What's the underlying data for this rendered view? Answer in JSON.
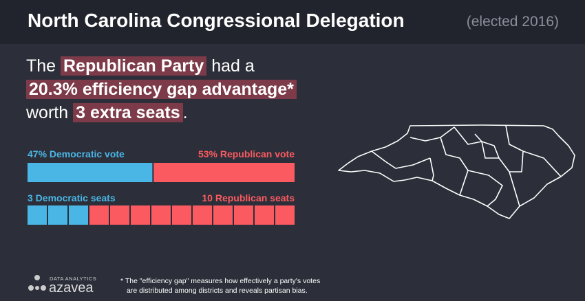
{
  "header": {
    "title": "North Carolina Congressional Delegation",
    "subtitle": "(elected 2016)"
  },
  "headline": {
    "lines": [
      [
        {
          "text": "The "
        },
        {
          "text": "Republican Party",
          "highlight": true
        },
        {
          "text": " had a"
        }
      ],
      [
        {
          "text": "20.3% efficiency gap advantage*",
          "highlight": true
        }
      ],
      [
        {
          "text": "worth "
        },
        {
          "text": "3 extra seats",
          "highlight": true
        },
        {
          "text": "."
        }
      ]
    ]
  },
  "vote_bar": {
    "democratic": {
      "label": "47% Democratic vote",
      "value": 47,
      "color": "#4ab6e6"
    },
    "republican": {
      "label": "53% Republican vote",
      "value": 53,
      "color": "#fb5a61"
    }
  },
  "seat_bar": {
    "democratic": {
      "label": "3 Democratic seats",
      "value": 3,
      "color": "#4ab6e6"
    },
    "republican": {
      "label": "10 Republican seats",
      "value": 10,
      "color": "#fb5a61"
    }
  },
  "footer": {
    "brand_small": "DATA ANALYTICS",
    "brand": "azavea",
    "note": [
      "* The \"efficiency gap\" measures how effectively a party's votes",
      "are distributed among districts and reveals partisan bias."
    ]
  }
}
